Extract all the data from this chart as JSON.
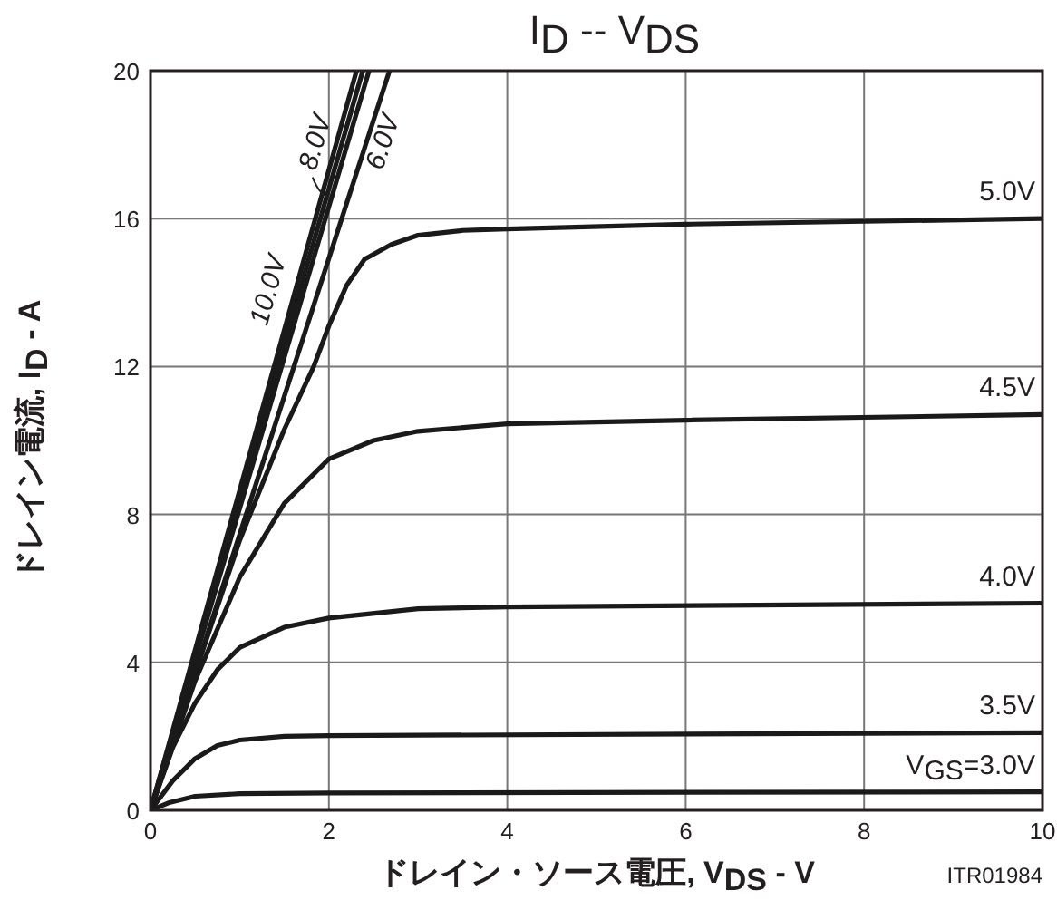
{
  "chart_data": {
    "type": "line",
    "title": "I$_{D}$ -- V$_{DS}$",
    "xlabel": "ドレイン・ソース電圧, V$_{DS}$ - V",
    "ylabel": "ドレイン電流, I$_{D}$ - A",
    "xlim": [
      0,
      10
    ],
    "ylim": [
      0,
      20
    ],
    "xticks": [
      0,
      2,
      4,
      6,
      8,
      10
    ],
    "yticks": [
      0,
      4,
      8,
      12,
      16,
      20
    ],
    "grid": true,
    "marker": "none",
    "line_style": "solid",
    "series": [
      {
        "name": "10.0V",
        "color": "#1a1a1a",
        "x": [
          0,
          2.31
        ],
        "values": [
          0,
          20
        ]
      },
      {
        "name": "8.0V",
        "color": "#1a1a1a",
        "x": [
          0,
          2.38
        ],
        "values": [
          0,
          20
        ]
      },
      {
        "color": "#1a1a1a",
        "x": [
          0,
          2.45
        ],
        "values": [
          0,
          20
        ]
      },
      {
        "name": "6.0V",
        "color": "#1a1a1a",
        "x": [
          0,
          2.68
        ],
        "values": [
          0,
          20
        ]
      },
      {
        "name": "5.0V",
        "color": "#1a1a1a",
        "x": [
          0,
          0.5,
          1,
          1.5,
          1.83,
          2,
          2.2,
          2.4,
          2.7,
          3,
          3.5,
          4,
          6,
          10
        ],
        "values": [
          0,
          3.7,
          7.3,
          10.3,
          12.0,
          13.1,
          14.2,
          14.9,
          15.3,
          15.55,
          15.68,
          15.72,
          15.85,
          16.0
        ]
      },
      {
        "name": "4.5V",
        "color": "#1a1a1a",
        "x": [
          0,
          0.5,
          1,
          1.5,
          2,
          2.5,
          3,
          4,
          6,
          10
        ],
        "values": [
          0,
          3.5,
          6.3,
          8.3,
          9.5,
          10.0,
          10.25,
          10.45,
          10.55,
          10.7
        ]
      },
      {
        "name": "4.0V",
        "color": "#1a1a1a",
        "x": [
          0,
          0.25,
          0.5,
          0.75,
          1,
          1.5,
          2,
          3,
          4,
          10
        ],
        "values": [
          0,
          1.7,
          2.9,
          3.8,
          4.4,
          4.95,
          5.2,
          5.45,
          5.5,
          5.6
        ]
      },
      {
        "name": "3.5V",
        "color": "#1a1a1a",
        "x": [
          0,
          0.25,
          0.5,
          0.75,
          1,
          1.5,
          2,
          10
        ],
        "values": [
          0,
          0.8,
          1.4,
          1.75,
          1.9,
          2.0,
          2.02,
          2.1
        ]
      },
      {
        "name": "V$_{GS}$=3.0V",
        "color": "#1a1a1a",
        "x": [
          0,
          0.2,
          0.5,
          1,
          2,
          10
        ],
        "values": [
          0,
          0.2,
          0.38,
          0.45,
          0.47,
          0.5
        ]
      }
    ],
    "annotations": [
      "ITR01984"
    ]
  }
}
